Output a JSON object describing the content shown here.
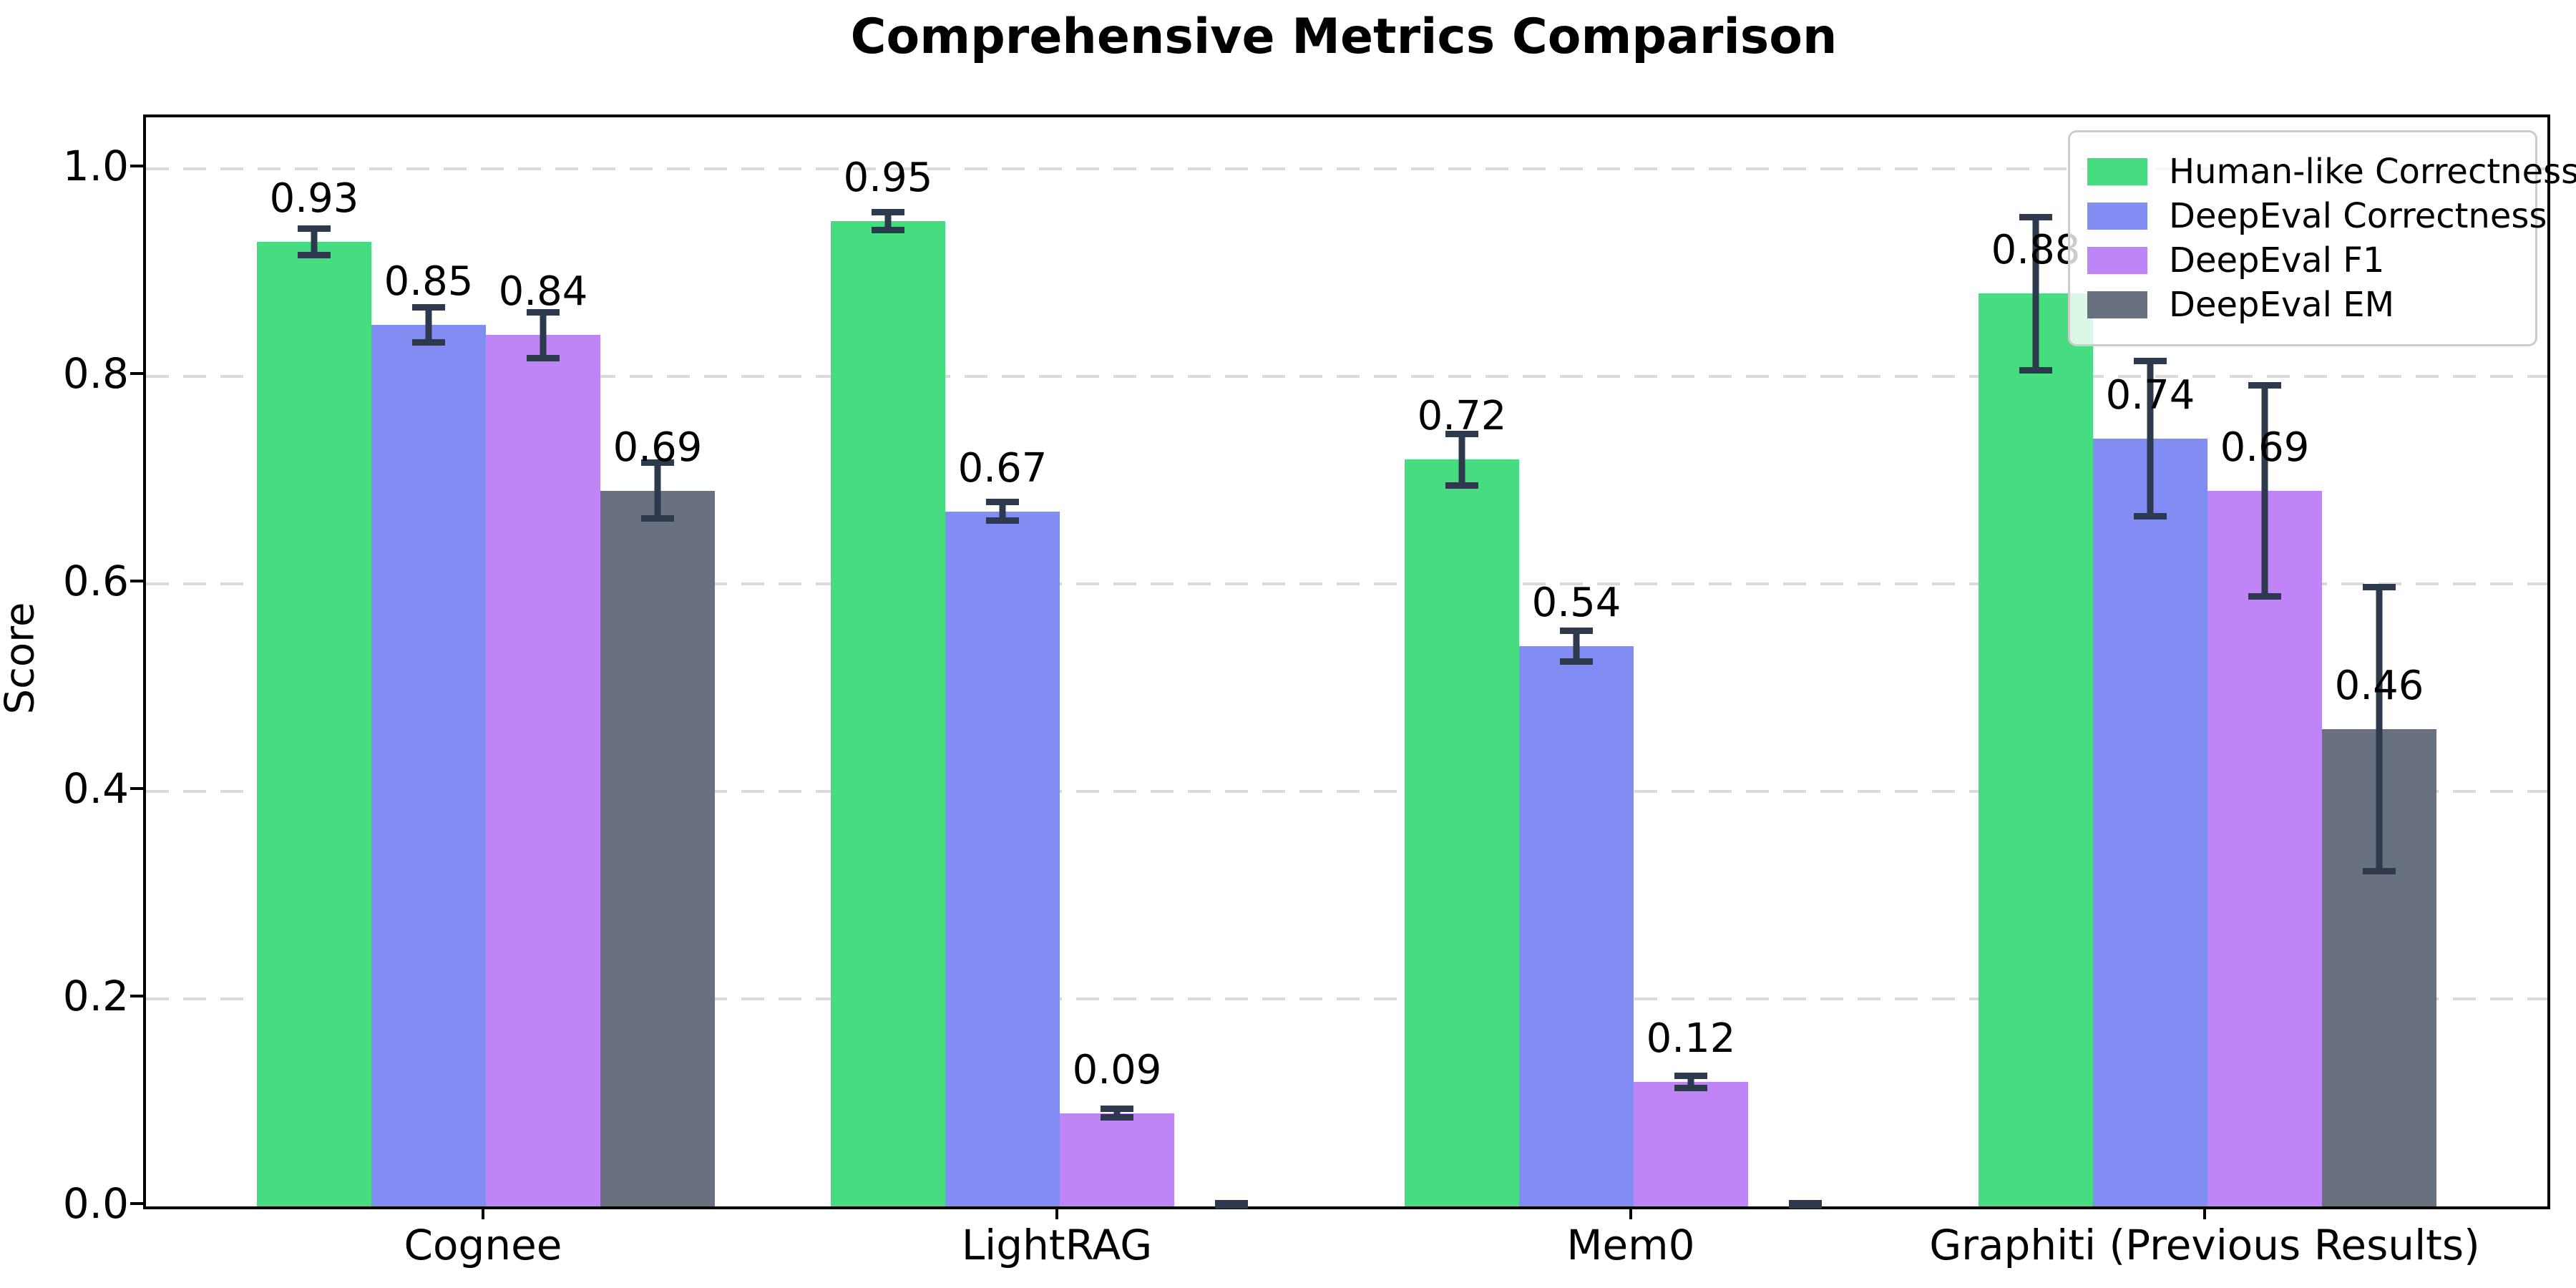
{
  "chart_data": {
    "type": "bar",
    "title": "Comprehensive Metrics Comparison",
    "xlabel": "",
    "ylabel": "Score",
    "categories": [
      "Cognee",
      "LightRAG",
      "Mem0",
      "Graphiti (Previous Results)"
    ],
    "series": [
      {
        "name": "Human-like Correctness",
        "color": "#46dc80",
        "values": [
          0.93,
          0.95,
          0.72,
          0.88
        ],
        "errors": [
          0.016,
          0.012,
          0.028,
          0.077
        ],
        "labels": [
          "0.93",
          "0.95",
          "0.72",
          "0.88"
        ]
      },
      {
        "name": "DeepEval Correctness",
        "color": "#818df2",
        "values": [
          0.85,
          0.67,
          0.54,
          0.74
        ],
        "errors": [
          0.02,
          0.012,
          0.018,
          0.078
        ],
        "labels": [
          "0.85",
          "0.67",
          "0.54",
          "0.74"
        ]
      },
      {
        "name": "DeepEval F1",
        "color": "#bf85f6",
        "values": [
          0.84,
          0.09,
          0.12,
          0.69
        ],
        "errors": [
          0.025,
          0.007,
          0.009,
          0.105
        ],
        "labels": [
          "0.84",
          "0.09",
          "0.12",
          "0.69"
        ]
      },
      {
        "name": "DeepEval EM",
        "color": "#697080",
        "values": [
          0.69,
          0.0,
          0.0,
          0.46
        ],
        "errors": [
          0.03,
          0.004,
          0.004,
          0.14
        ],
        "labels": [
          "0.69",
          "",
          "",
          "0.46"
        ]
      }
    ],
    "ylim": [
      0,
      1.05
    ],
    "ytick_labels": [
      "0.0",
      "0.2",
      "0.4",
      "0.6",
      "0.8",
      "1.0"
    ],
    "ytick_values": [
      0.0,
      0.2,
      0.4,
      0.6,
      0.8,
      1.0
    ],
    "grid": "horizontal-dashed",
    "grid_color": "#d9d9d9",
    "axis_color": "#000000",
    "error_bar_color": "#2d3a4e",
    "legend_position": "upper-right"
  }
}
